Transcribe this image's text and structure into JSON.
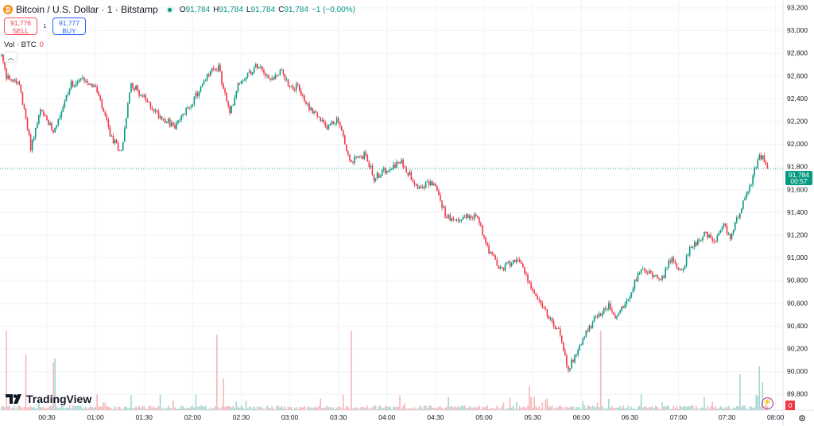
{
  "header": {
    "coin_icon": "bitcoin-icon",
    "title": "Bitcoin / U.S. Dollar · 1 · Bitstamp",
    "o_label": "O",
    "o": "91,784",
    "h_label": "H",
    "h": "91,784",
    "l_label": "L",
    "l": "91,784",
    "c_label": "C",
    "c": "91,784",
    "change": "−1 (−0.00%)"
  },
  "trade": {
    "sell_price": "91,776",
    "sell_label": "SELL",
    "spread": "1",
    "buy_price": "91,777",
    "buy_label": "BUY"
  },
  "volume_legend": {
    "label": "Vol · BTC",
    "value": "0"
  },
  "logo": "TradingView",
  "price_label": {
    "price": "91,784",
    "countdown": "00:57"
  },
  "volume_axis_label": "0",
  "colors": {
    "up": "#089981",
    "down": "#f23645",
    "up_vol": "#9fd8d1",
    "down_vol": "#f8b4b8"
  },
  "chart_data": {
    "type": "candlestick",
    "symbol": "BTCUSD",
    "interval_minutes": 1,
    "y_ticks": [
      "93,200",
      "93,000",
      "92,800",
      "92,600",
      "92,400",
      "92,200",
      "92,000",
      "91,800",
      "91,600",
      "91,400",
      "91,200",
      "91,000",
      "90,800",
      "90,600",
      "90,400",
      "90,200",
      "90,000",
      "89,800"
    ],
    "y_tick_values": [
      93200,
      93000,
      92800,
      92600,
      92400,
      92200,
      92000,
      91800,
      91600,
      91400,
      91200,
      91000,
      90800,
      90600,
      90400,
      90200,
      90000,
      89800
    ],
    "x_ticks": [
      "00:30",
      "01:00",
      "01:30",
      "02:00",
      "02:30",
      "03:00",
      "03:30",
      "04:00",
      "04:30",
      "05:00",
      "05:30",
      "06:00",
      "06:30",
      "07:00",
      "07:30",
      "08:00"
    ],
    "x_tick_minutes": [
      30,
      60,
      90,
      120,
      150,
      180,
      210,
      240,
      270,
      300,
      330,
      360,
      390,
      420,
      450,
      480
    ],
    "ylim": [
      89800,
      93200
    ],
    "xlim_minutes": [
      0,
      482
    ],
    "last_price": 91784,
    "close_path_minutes": [
      2,
      5,
      13,
      20,
      26,
      34,
      45,
      53,
      60,
      70,
      76,
      82,
      92,
      99,
      109,
      121,
      131,
      136,
      143,
      148,
      161,
      168,
      175,
      180,
      185,
      190,
      197,
      202,
      210,
      217,
      227,
      232,
      242,
      249,
      259,
      269,
      276,
      281,
      291,
      296,
      303,
      310,
      320,
      328,
      340,
      347,
      352,
      359,
      367,
      377,
      381,
      389,
      396,
      404,
      411,
      414,
      422,
      428,
      436,
      443,
      448,
      452,
      458,
      465,
      470,
      474,
      475
    ],
    "close_path_prices": [
      92780,
      92590,
      92540,
      91975,
      92290,
      92115,
      92530,
      92580,
      92500,
      92050,
      91940,
      92540,
      92370,
      92260,
      92150,
      92400,
      92640,
      92675,
      92260,
      92540,
      92710,
      92570,
      92640,
      92510,
      92500,
      92360,
      92250,
      92150,
      92220,
      91840,
      91910,
      91700,
      91805,
      91840,
      91630,
      91665,
      91385,
      91315,
      91385,
      91350,
      91070,
      90890,
      91000,
      90790,
      90470,
      90330,
      90020,
      90230,
      90440,
      90580,
      90470,
      90650,
      90890,
      90860,
      90820,
      91000,
      90890,
      91100,
      91210,
      91140,
      91280,
      91175,
      91420,
      91665,
      91910,
      91840,
      91784
    ],
    "volume_spikes": [
      [
        5,
        1.0
      ],
      [
        17,
        0.7
      ],
      [
        34,
        0.6
      ],
      [
        35,
        0.65
      ],
      [
        135,
        0.95
      ],
      [
        139,
        0.4
      ],
      [
        218,
        1.0
      ],
      [
        328,
        0.3
      ],
      [
        372,
        1.0
      ],
      [
        397,
        0.2
      ],
      [
        458,
        0.45
      ],
      [
        470,
        0.55
      ],
      [
        472,
        0.35
      ]
    ]
  }
}
